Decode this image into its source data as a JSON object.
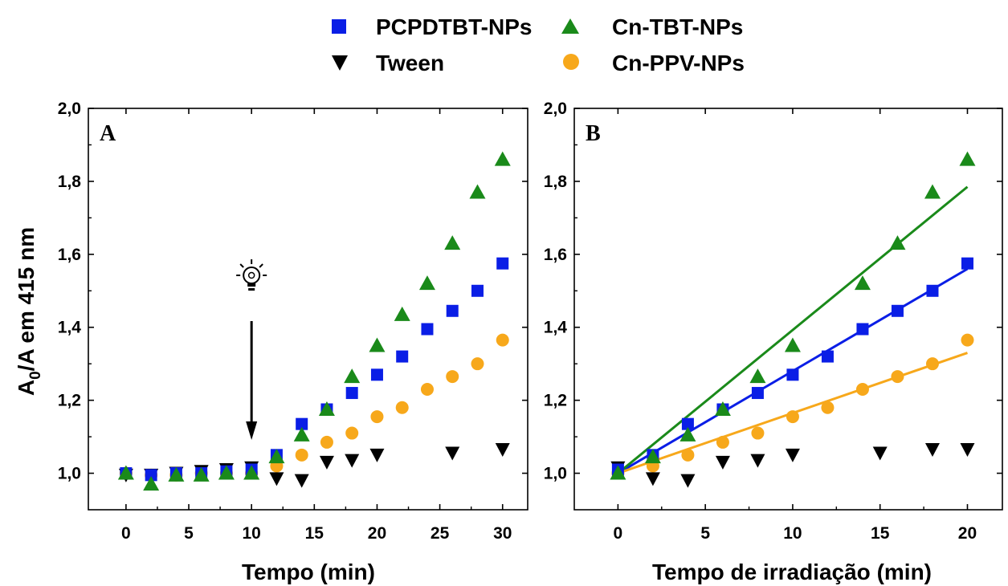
{
  "legend": {
    "items": [
      {
        "label": "PCPDTBT-NPs",
        "marker": "square",
        "color": "#0a1ee6"
      },
      {
        "label": "Cn-TBT-NPs",
        "marker": "triangle-up",
        "color": "#1a8a1a"
      },
      {
        "label": "Tween",
        "marker": "triangle-down",
        "color": "#000000"
      },
      {
        "label": "Cn-PPV-NPs",
        "marker": "circle",
        "color": "#f7a81b"
      }
    ]
  },
  "axes": {
    "ylabel_main": "A",
    "ylabel_sub": "0",
    "ylabel_rest": "/A em 415 nm",
    "y_ticks": [
      "2,0",
      "1,8",
      "1,6",
      "1,4",
      "1,2",
      "1,0"
    ]
  },
  "chart_data": [
    {
      "panel": "A",
      "type": "scatter",
      "xlabel": "Tempo (min)",
      "ylabel": "A0/A em 415 nm",
      "xlim": [
        -3,
        32
      ],
      "ylim": [
        0.9,
        2.0
      ],
      "x_ticks": [
        0,
        5,
        10,
        15,
        20,
        25,
        30
      ],
      "y_ticks": [
        1.0,
        1.2,
        1.4,
        1.6,
        1.8,
        2.0
      ],
      "annotation": {
        "icon": "lightbulb-icon",
        "arrow_x": 10
      },
      "series": [
        {
          "name": "PCPDTBT-NPs",
          "marker": "square",
          "color": "#0a1ee6",
          "x": [
            0,
            2,
            4,
            6,
            8,
            10,
            12,
            14,
            16,
            18,
            20,
            22,
            24,
            26,
            28,
            30
          ],
          "y": [
            1.0,
            0.995,
            1.0,
            1.0,
            1.005,
            1.01,
            1.05,
            1.135,
            1.175,
            1.22,
            1.27,
            1.32,
            1.395,
            1.445,
            1.5,
            1.575
          ]
        },
        {
          "name": "Cn-TBT-NPs",
          "marker": "triangle-up",
          "color": "#1a8a1a",
          "x": [
            0,
            2,
            4,
            6,
            8,
            10,
            12,
            14,
            16,
            18,
            20,
            22,
            24,
            26,
            28,
            30
          ],
          "y": [
            1.0,
            0.97,
            0.995,
            0.995,
            1.0,
            1.0,
            1.045,
            1.105,
            1.175,
            1.265,
            1.35,
            1.435,
            1.52,
            1.63,
            1.77,
            1.86
          ]
        },
        {
          "name": "Tween",
          "marker": "triangle-down",
          "color": "#000000",
          "x": [
            0,
            2,
            4,
            6,
            8,
            10,
            12,
            14,
            16,
            18,
            20,
            26,
            30
          ],
          "y": [
            0.995,
            0.995,
            1.0,
            1.005,
            1.01,
            1.015,
            0.985,
            0.98,
            1.03,
            1.035,
            1.05,
            1.055,
            1.065
          ]
        },
        {
          "name": "Cn-PPV-NPs",
          "marker": "circle",
          "color": "#f7a81b",
          "x": [
            0,
            2,
            4,
            6,
            8,
            10,
            12,
            14,
            16,
            18,
            20,
            22,
            24,
            26,
            28,
            30
          ],
          "y": [
            1.0,
            0.995,
            0.995,
            1.0,
            1.0,
            1.0,
            1.02,
            1.05,
            1.085,
            1.11,
            1.155,
            1.18,
            1.23,
            1.265,
            1.3,
            1.365
          ]
        }
      ]
    },
    {
      "panel": "B",
      "type": "scatter",
      "xlabel": "Tempo de irradiação (min)",
      "ylabel": "",
      "xlim": [
        -2.5,
        22
      ],
      "ylim": [
        0.9,
        2.0
      ],
      "x_ticks": [
        0,
        5,
        10,
        15,
        20
      ],
      "y_ticks": [
        1.0,
        1.2,
        1.4,
        1.6,
        1.8,
        2.0
      ],
      "series": [
        {
          "name": "PCPDTBT-NPs",
          "marker": "square",
          "color": "#0a1ee6",
          "x": [
            0,
            2,
            4,
            6,
            8,
            10,
            12,
            14,
            16,
            18,
            20
          ],
          "y": [
            1.01,
            1.05,
            1.135,
            1.175,
            1.22,
            1.27,
            1.32,
            1.395,
            1.445,
            1.5,
            1.575
          ],
          "fit": {
            "x": [
              0,
              20
            ],
            "y": [
              1.0,
              1.56
            ]
          }
        },
        {
          "name": "Cn-TBT-NPs",
          "marker": "triangle-up",
          "color": "#1a8a1a",
          "x": [
            0,
            2,
            4,
            6,
            8,
            10,
            14,
            16,
            18,
            20
          ],
          "y": [
            1.0,
            1.045,
            1.105,
            1.175,
            1.265,
            1.35,
            1.52,
            1.63,
            1.77,
            1.86
          ],
          "fit": {
            "x": [
              0,
              20
            ],
            "y": [
              1.0,
              1.785
            ]
          }
        },
        {
          "name": "Tween",
          "marker": "triangle-down",
          "color": "#000000",
          "x": [
            0,
            2,
            4,
            6,
            8,
            10,
            15,
            18,
            20
          ],
          "y": [
            1.015,
            0.985,
            0.98,
            1.03,
            1.035,
            1.05,
            1.055,
            1.065,
            1.065
          ]
        },
        {
          "name": "Cn-PPV-NPs",
          "marker": "circle",
          "color": "#f7a81b",
          "x": [
            0,
            2,
            4,
            6,
            8,
            10,
            12,
            14,
            16,
            18,
            20
          ],
          "y": [
            1.0,
            1.02,
            1.05,
            1.085,
            1.11,
            1.155,
            1.18,
            1.23,
            1.265,
            1.3,
            1.365
          ],
          "fit": {
            "x": [
              0,
              20
            ],
            "y": [
              1.0,
              1.33
            ]
          }
        }
      ]
    }
  ]
}
